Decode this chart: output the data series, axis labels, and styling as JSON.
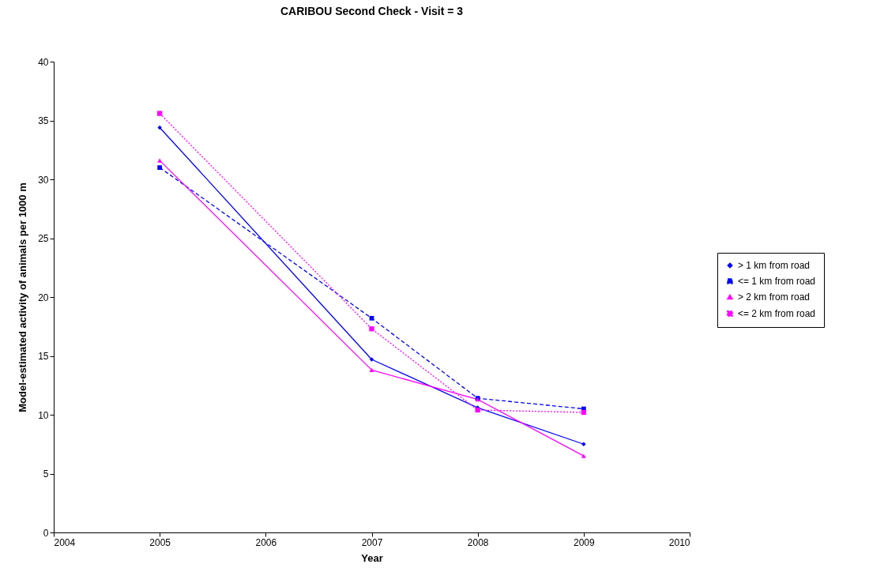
{
  "chart_data": {
    "type": "line",
    "title": "CARIBOU Second Check - Visit = 3",
    "xlabel": "Year",
    "ylabel": "Model-estimated  activity  of animals per 1000 m",
    "x": [
      2005,
      2007,
      2008,
      2009
    ],
    "series": [
      {
        "name": "> 1 km from road",
        "color": "#0000ff",
        "marker": "diamond",
        "line_style": "solid",
        "values": [
          34.4,
          14.7,
          10.6,
          7.5
        ]
      },
      {
        "name": "<= 1 km from road",
        "color": "#0000ff",
        "marker": "square",
        "line_style": "dashed",
        "values": [
          31.0,
          18.2,
          11.4,
          10.5
        ]
      },
      {
        "name": "> 2 km from road",
        "color": "#ff00ff",
        "marker": "triangle",
        "line_style": "solid",
        "values": [
          31.6,
          13.8,
          11.3,
          6.5
        ]
      },
      {
        "name": "<= 2 km from road",
        "color": "#ff00ff",
        "marker": "square",
        "line_style": "dotted",
        "values": [
          35.6,
          17.3,
          10.4,
          10.2
        ]
      }
    ],
    "xlim": [
      2004,
      2010
    ],
    "xticks": [
      2004,
      2005,
      2006,
      2007,
      2008,
      2009,
      2010
    ],
    "ylim": [
      0,
      40
    ],
    "yticks": [
      0,
      5,
      10,
      15,
      20,
      25,
      30,
      35,
      40
    ],
    "grid": false,
    "legend": "right"
  }
}
